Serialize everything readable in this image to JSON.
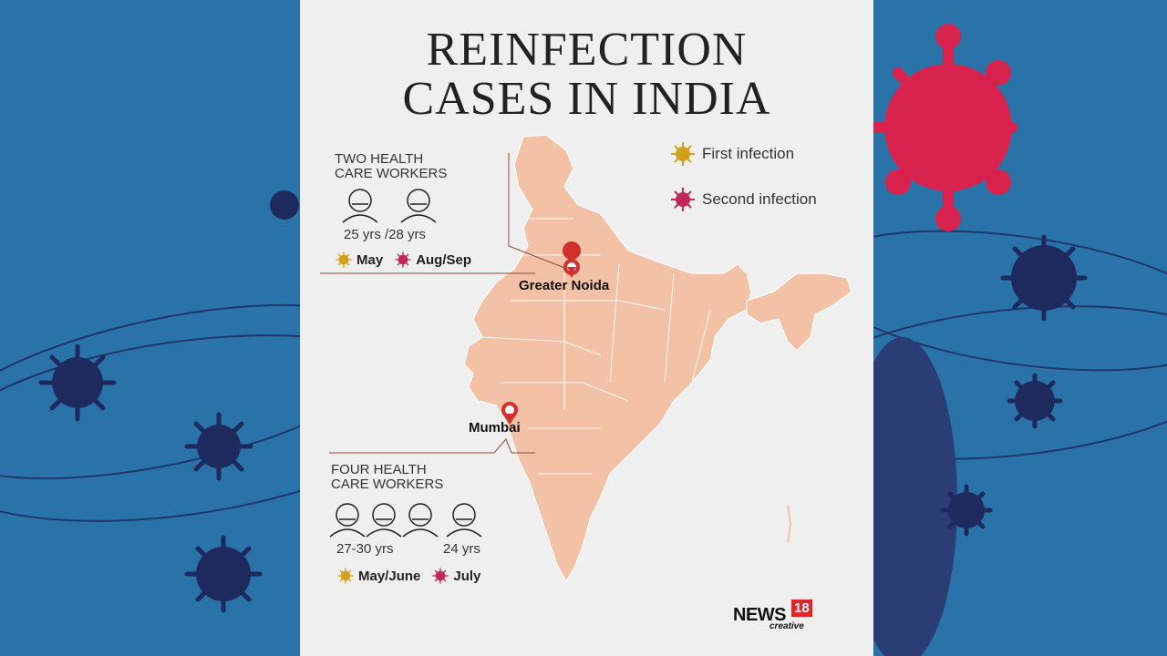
{
  "title_line1": "REINFECTION",
  "title_line2": "CASES IN INDIA",
  "legend": {
    "first": "First infection",
    "second": "Second infection"
  },
  "colors": {
    "background": "#2a73a8",
    "card": "#efefef",
    "map_fill": "#f3c1a6",
    "first_infection": "#d4a017",
    "second_infection": "#c0285a",
    "virus_navy": "#1e2a5e",
    "virus_red": "#d9234f",
    "pin": "#d0312d"
  },
  "groups": [
    {
      "title_line1": "TWO HEALTH",
      "title_line2": "CARE WORKERS",
      "ages": "25 yrs /28 yrs",
      "first_infection": "May",
      "second_infection": "Aug/Sep",
      "city": "Greater Noida"
    },
    {
      "title_line1": "FOUR HEALTH",
      "title_line2": "CARE WORKERS",
      "ages_a": "27-30 yrs",
      "ages_b": "24 yrs",
      "first_infection": "May/June",
      "second_infection": "July",
      "city": "Mumbai"
    }
  ],
  "logo": {
    "brand": "NEWS",
    "number": "18",
    "sub": "creative"
  }
}
